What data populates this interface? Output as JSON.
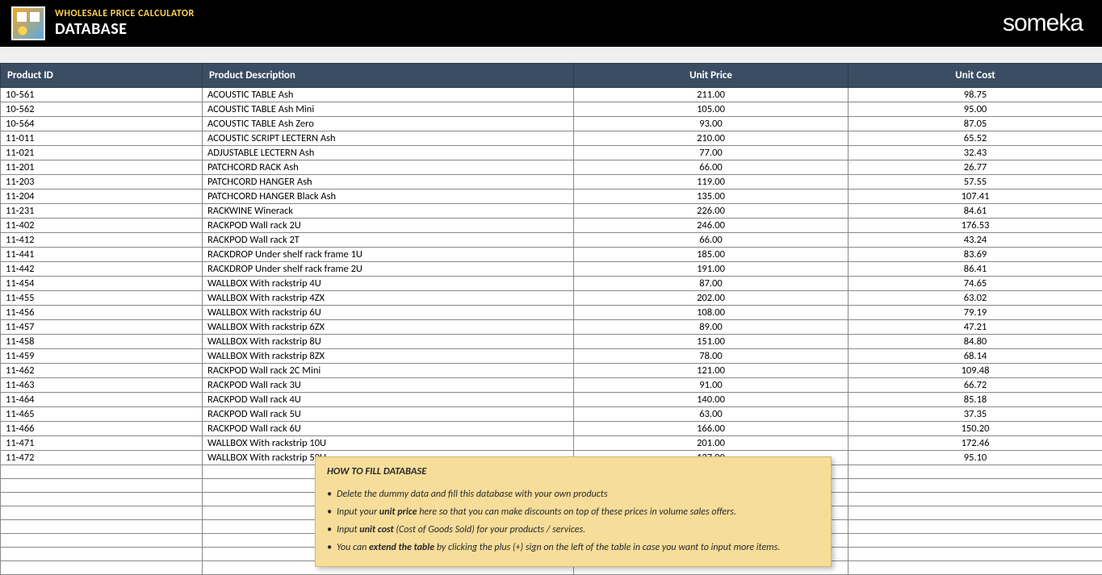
{
  "header": {
    "app_title": "WHOLESALE PRICE CALCULATOR",
    "page_title": "DATABASE",
    "brand": "someka"
  },
  "table": {
    "columns": [
      "Product ID",
      "Product Description",
      "Unit Price",
      "Unit Cost"
    ],
    "column_alignment": [
      "left",
      "left",
      "center",
      "center"
    ],
    "rows": [
      [
        "10-561",
        "ACOUSTIC TABLE Ash",
        "211.00",
        "98.75"
      ],
      [
        "10-562",
        "ACOUSTIC TABLE Ash Mini",
        "105.00",
        "95.00"
      ],
      [
        "10-564",
        "ACOUSTIC TABLE Ash Zero",
        "93.00",
        "87.05"
      ],
      [
        "11-011",
        "ACOUSTIC SCRIPT LECTERN Ash",
        "210.00",
        "65.52"
      ],
      [
        "11-021",
        "ADJUSTABLE LECTERN Ash",
        "77.00",
        "32.43"
      ],
      [
        "11-201",
        "PATCHCORD RACK Ash",
        "66.00",
        "26.77"
      ],
      [
        "11-203",
        "PATCHCORD HANGER Ash",
        "119.00",
        "57.55"
      ],
      [
        "11-204",
        "PATCHCORD HANGER Black Ash",
        "135.00",
        "107.41"
      ],
      [
        "11-231",
        "RACKWINE Winerack",
        "226.00",
        "84.61"
      ],
      [
        "11-402",
        "RACKPOD Wall rack 2U",
        "246.00",
        "176.53"
      ],
      [
        "11-412",
        "RACKPOD Wall rack 2T",
        "66.00",
        "43.24"
      ],
      [
        "11-441",
        "RACKDROP Under shelf rack frame 1U",
        "185.00",
        "83.69"
      ],
      [
        "11-442",
        "RACKDROP Under shelf rack frame 2U",
        "191.00",
        "86.41"
      ],
      [
        "11-454",
        "WALLBOX With rackstrip 4U",
        "87.00",
        "74.65"
      ],
      [
        "11-455",
        "WALLBOX With rackstrip 4ZX",
        "202.00",
        "63.02"
      ],
      [
        "11-456",
        "WALLBOX With rackstrip 6U",
        "108.00",
        "79.19"
      ],
      [
        "11-457",
        "WALLBOX With rackstrip 6ZX",
        "89.00",
        "47.21"
      ],
      [
        "11-458",
        "WALLBOX With rackstrip 8U",
        "151.00",
        "84.80"
      ],
      [
        "11-459",
        "WALLBOX With rackstrip 8ZX",
        "78.00",
        "68.14"
      ],
      [
        "11-462",
        "RACKPOD Wall rack 2C Mini",
        "121.00",
        "109.48"
      ],
      [
        "11-463",
        "RACKPOD Wall rack 3U",
        "91.00",
        "66.72"
      ],
      [
        "11-464",
        "RACKPOD Wall rack 4U",
        "140.00",
        "85.18"
      ],
      [
        "11-465",
        "RACKPOD Wall rack 5U",
        "63.00",
        "37.35"
      ],
      [
        "11-466",
        "RACKPOD Wall rack 6U",
        "166.00",
        "150.20"
      ],
      [
        "11-471",
        "WALLBOX With rackstrip 10U",
        "201.00",
        "172.46"
      ],
      [
        "11-472",
        "WALLBOX With rackstrip 50U",
        "127.00",
        "95.10"
      ]
    ],
    "blank_rows": 8,
    "colors": {
      "header_bg": "#3b4d63",
      "header_text": "#ffffff",
      "row_border": "#888888",
      "body_text": "#000000"
    }
  },
  "info_box": {
    "title": "HOW TO FILL DATABASE",
    "items": [
      {
        "pre": "Delete the dummy data and fill this database with your own products",
        "bold": "",
        "post": ""
      },
      {
        "pre": "Input your ",
        "bold": "unit price",
        "post": " here so that you can make discounts on top of these prices in volume sales offers."
      },
      {
        "pre": "Input ",
        "bold": "unit cost",
        "post": " (Cost of Goods Sold) for your products / services."
      },
      {
        "pre": "You can ",
        "bold": "extend the table",
        "post": " by clicking the plus (+) sign on the left of the table in case you want to input more items."
      }
    ],
    "colors": {
      "bg": "#f6dd9a",
      "border": "#d4b96a",
      "text": "#2a2a2a"
    }
  }
}
